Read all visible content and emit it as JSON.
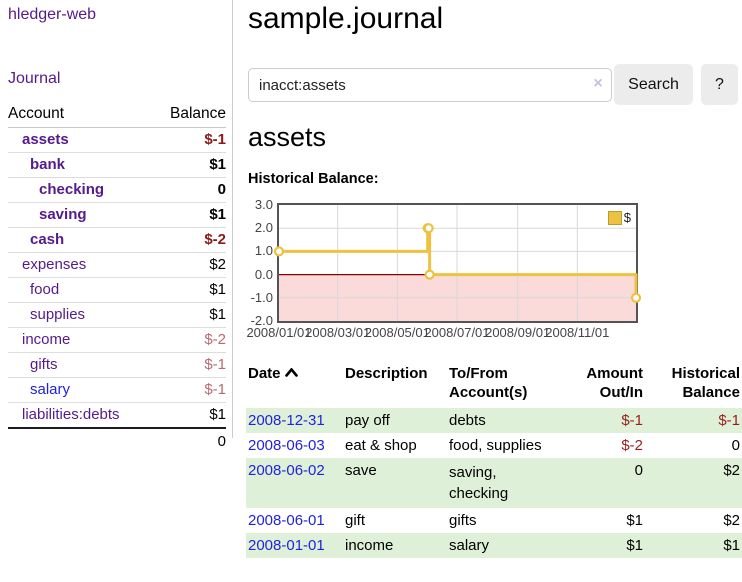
{
  "sidebar": {
    "brand": "hledger-web",
    "nav": {
      "journal": "Journal"
    },
    "table": {
      "account_header": "Account",
      "balance_header": "Balance"
    },
    "accounts": [
      {
        "name": "assets",
        "balance": "$-1",
        "depth": 1
      },
      {
        "name": "bank",
        "balance": "$1",
        "depth": 2
      },
      {
        "name": "checking",
        "balance": "0",
        "depth": 3
      },
      {
        "name": "saving",
        "balance": "$1",
        "depth": 3
      },
      {
        "name": "cash",
        "balance": "$-2",
        "depth": 2
      },
      {
        "name": "expenses",
        "balance": "$2",
        "depth": 1
      },
      {
        "name": "food",
        "balance": "$1",
        "depth": 2
      },
      {
        "name": "supplies",
        "balance": "$1",
        "depth": 2
      },
      {
        "name": "income",
        "balance": "$-2",
        "depth": 1
      },
      {
        "name": "gifts",
        "balance": "$-1",
        "depth": 2
      },
      {
        "name": "salary",
        "balance": "$-1",
        "depth": 2
      },
      {
        "name": "liabilities:debts",
        "balance": "$1",
        "depth": 1
      }
    ],
    "total": "0"
  },
  "main": {
    "title": "sample.journal",
    "search": {
      "value": "inacct:assets",
      "clear_label": "×",
      "search_button": "Search",
      "help_button": "?"
    },
    "account_heading": "assets",
    "chart_label": "Historical Balance:"
  },
  "chart_data": {
    "type": "line",
    "step": true,
    "title": "Historical Balance:",
    "legend": "$",
    "legend_position": "top-right",
    "series": [
      {
        "name": "$",
        "color": "#edc240",
        "points": [
          [
            "2008/01/01",
            1
          ],
          [
            "2008/06/01",
            2
          ],
          [
            "2008/06/02",
            2
          ],
          [
            "2008/06/03",
            0
          ],
          [
            "2008/12/31",
            -1
          ]
        ]
      }
    ],
    "x_range": [
      "2008/01/01",
      "2008/12/31"
    ],
    "ylim": [
      -2,
      3
    ],
    "y_ticks": [
      {
        "v": 3,
        "label": "3.0"
      },
      {
        "v": 2,
        "label": "2.0"
      },
      {
        "v": 1,
        "label": "1.0"
      },
      {
        "v": 0,
        "label": "0.0"
      },
      {
        "v": -1,
        "label": "-1.0"
      },
      {
        "v": -2,
        "label": "-2.0"
      }
    ],
    "x_ticks": [
      {
        "date": "2008/01/01",
        "label": "2008/01/01"
      },
      {
        "date": "2008/03/01",
        "label": "2008/03/01"
      },
      {
        "date": "2008/05/01",
        "label": "2008/05/01"
      },
      {
        "date": "2008/07/01",
        "label": "2008/07/01"
      },
      {
        "date": "2008/09/01",
        "label": "2008/09/01"
      },
      {
        "date": "2008/11/01",
        "label": "2008/11/01"
      }
    ],
    "grid": true,
    "negative_shading": "#fbdada",
    "zero_line_color": "#8b0000",
    "grid_color": "#d8d8d8"
  },
  "register": {
    "header": {
      "date": "Date",
      "description": "Description",
      "accounts_line1": "To/From",
      "accounts_line2": "Account(s)",
      "amount_line1": "Amount",
      "amount_line2": "Out/In",
      "balance_line1": "Historical",
      "balance_line2": "Balance"
    },
    "sort": {
      "column": "Date",
      "direction": "ascending"
    },
    "rows": [
      {
        "date": "2008-12-31",
        "description": "pay off",
        "accounts": "debts",
        "amount": "$-1",
        "balance": "$-1"
      },
      {
        "date": "2008-06-03",
        "description": "eat & shop",
        "accounts": "food, supplies",
        "amount": "$-2",
        "balance": "0"
      },
      {
        "date": "2008-06-02",
        "description": "save",
        "accounts": "saving, checking",
        "amount": "0",
        "balance": "$2"
      },
      {
        "date": "2008-06-01",
        "description": "gift",
        "accounts": "gifts",
        "amount": "$1",
        "balance": "$2"
      },
      {
        "date": "2008-01-01",
        "description": "income",
        "accounts": "salary",
        "amount": "$1",
        "balance": "$1"
      }
    ]
  },
  "colors": {
    "link_purple": "#551a8b",
    "link_blue": "#2222dd",
    "negative_strong": "#8b1a1a",
    "negative_muted": "#b66a72",
    "register_negative": "#9b1c1c",
    "row_stripe_green": "#dff0d8",
    "chart_line": "#edc240"
  }
}
